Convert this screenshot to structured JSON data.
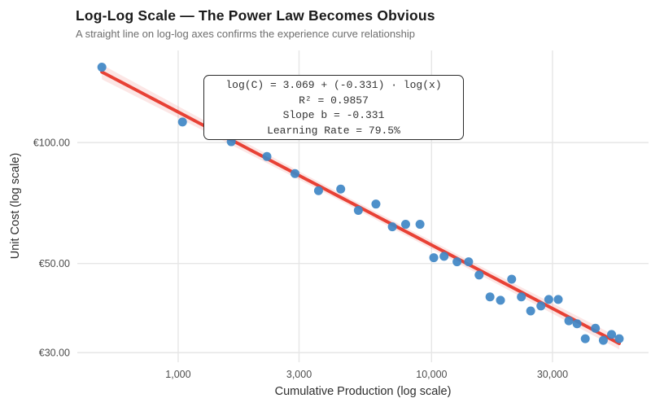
{
  "header": {
    "title": "Log-Log Scale — The Power Law Becomes Obvious",
    "subtitle": "A straight line on log-log axes confirms the experience curve relationship"
  },
  "chart_data": {
    "type": "scatter",
    "title": "Log-Log Scale — The Power Law Becomes Obvious",
    "subtitle": "A straight line on log-log axes confirms the experience curve relationship",
    "xlabel": "Cumulative Production (log scale)",
    "ylabel": "Unit Cost (log scale)",
    "x_scale": "log",
    "y_scale": "log",
    "grid": true,
    "legend": false,
    "x_range": [
      400,
      71800
    ],
    "y_range": [
      28.4,
      169.5
    ],
    "x_ticks": [
      {
        "value": 1000,
        "label": "1,000"
      },
      {
        "value": 3000,
        "label": "3,000"
      },
      {
        "value": 10000,
        "label": "10,000"
      },
      {
        "value": 30000,
        "label": "30,000"
      }
    ],
    "y_ticks": [
      {
        "value": 100,
        "label": "€100.00"
      },
      {
        "value": 50,
        "label": "€50.00"
      },
      {
        "value": 30,
        "label": "€30.00"
      }
    ],
    "points": {
      "x": [
        500,
        1040,
        1620,
        2240,
        2890,
        3580,
        4380,
        5140,
        6030,
        7000,
        7900,
        9000,
        10200,
        11200,
        12600,
        14000,
        15400,
        17000,
        18700,
        20700,
        22600,
        24600,
        27000,
        29000,
        31600,
        34800,
        37500,
        40400,
        44300,
        47600,
        51300,
        55000
      ],
      "y": [
        154,
        112.5,
        100.5,
        92.3,
        83.7,
        75.9,
        76.6,
        67.8,
        70.3,
        61.7,
        62.6,
        62.6,
        51.7,
        52.1,
        50.5,
        50.5,
        46.8,
        41.3,
        40.5,
        45.7,
        41.3,
        38.1,
        39.2,
        40.7,
        40.7,
        36.0,
        35.4,
        32.5,
        34.5,
        32.2,
        33.3,
        32.5
      ]
    },
    "regression": {
      "equation": "log(C) = 3.069 + (-0.331) · log(x)",
      "intercept": 3.069,
      "slope": -0.331,
      "r_squared": 0.9857,
      "learning_rate_pct": 79.5,
      "x_start": 500,
      "x_end": 55000
    },
    "annotation": {
      "lines": [
        "log(C) = 3.069 + (-0.331) · log(x)",
        "R² = 0.9857",
        "Slope b = -0.331",
        "Learning Rate = 79.5%"
      ]
    },
    "colors": {
      "point": "#3f87c5",
      "line": "#e84135",
      "band": "rgba(232,65,53,0.13)",
      "grid": "#e6e6e6",
      "tick_text": "#4d4d4d",
      "title_text": "#1a1a1a",
      "subtitle_text": "#6e6e6e",
      "axis_title_text": "#2e2e2e"
    }
  }
}
